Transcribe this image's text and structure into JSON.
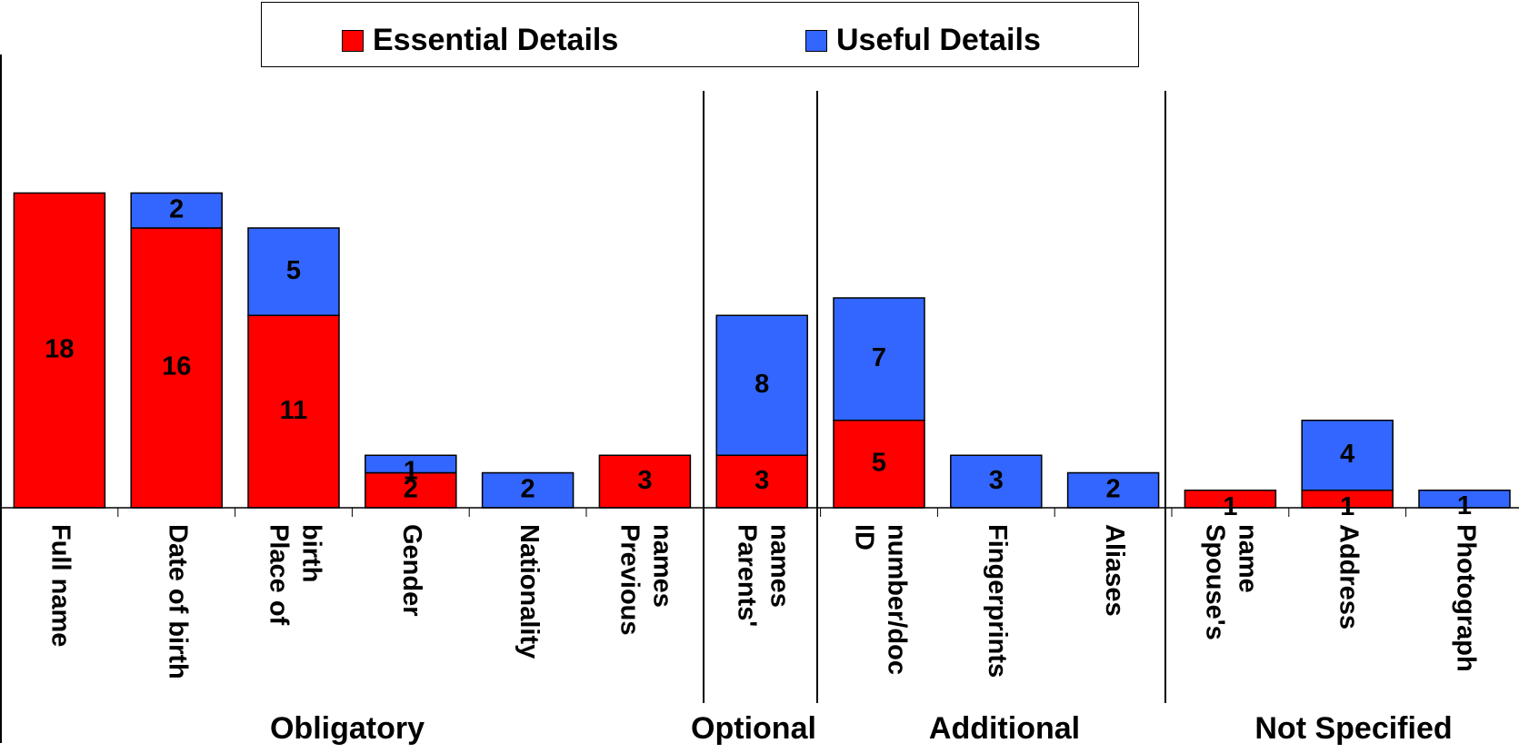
{
  "chart_data": {
    "type": "bar",
    "stacked": true,
    "categories": [
      "Full name",
      "Date of birth",
      "Place of birth",
      "Gender",
      "Nationality",
      "Previous names",
      "Parents' names",
      "ID number/doc",
      "Fingerprints",
      "Aliases",
      "Spouse's name",
      "Address",
      "Photograph"
    ],
    "category_lines": [
      [
        "Full name"
      ],
      [
        "Date of birth"
      ],
      [
        "Place of",
        "birth"
      ],
      [
        "Gender"
      ],
      [
        "Nationality"
      ],
      [
        "Previous",
        "names"
      ],
      [
        "Parents'",
        "names"
      ],
      [
        "ID",
        "number/doc"
      ],
      [
        "Fingerprints"
      ],
      [
        "Aliases"
      ],
      [
        "Spouse's",
        "name"
      ],
      [
        "Address"
      ],
      [
        "Photograph"
      ]
    ],
    "series": [
      {
        "name": "Essential Details",
        "color": "#ff0000",
        "values": [
          18,
          16,
          11,
          2,
          0,
          3,
          3,
          5,
          0,
          0,
          1,
          1,
          0
        ]
      },
      {
        "name": "Useful Details",
        "color": "#3366ff",
        "values": [
          0,
          2,
          5,
          1,
          2,
          0,
          8,
          7,
          3,
          2,
          0,
          4,
          1
        ]
      }
    ],
    "groups": [
      {
        "label": "Obligatory",
        "start": 0,
        "end": 5
      },
      {
        "label": "Optional",
        "start": 6,
        "end": 6
      },
      {
        "label": "Additional",
        "start": 7,
        "end": 9
      },
      {
        "label": "Not Specified",
        "start": 10,
        "end": 12
      }
    ],
    "ylim": [
      0,
      18
    ],
    "legend_position": "top",
    "grid": false
  }
}
